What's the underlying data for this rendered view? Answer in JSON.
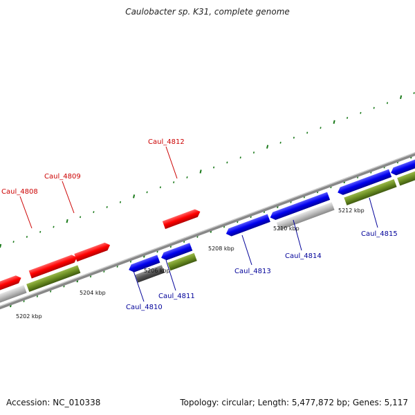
{
  "title": "Caulobacter sp. K31, complete genome",
  "footer": {
    "accession": "Accession: NC_010338",
    "topology": "Topology: circular; Length: 5,477,872 bp; Genes: 5,117"
  },
  "colors": {
    "forward_cds": "#ff0000",
    "reverse_cds": "#0000ee",
    "gene": "#6b8e23",
    "pseudo_or_other": "#bbbbbb",
    "dark_feature": "#555555",
    "backbone": "#888888",
    "tick": "#1a7a1a",
    "label_forward": "#cc0000",
    "label_reverse": "#000099"
  },
  "scale_labels": [
    "5202 kbp",
    "5204 kbp",
    "5206 kbp",
    "5208 kbp",
    "5210 kbp",
    "5212 kbp"
  ],
  "gene_labels": [
    {
      "text": "Caul_4808",
      "strand": "forward"
    },
    {
      "text": "Caul_4809",
      "strand": "forward"
    },
    {
      "text": "Caul_4812",
      "strand": "forward"
    },
    {
      "text": "Caul_4810",
      "strand": "reverse"
    },
    {
      "text": "Caul_4811",
      "strand": "reverse"
    },
    {
      "text": "Caul_4813",
      "strand": "reverse"
    },
    {
      "text": "Caul_4814",
      "strand": "reverse"
    },
    {
      "text": "Caul_4815",
      "strand": "reverse"
    }
  ]
}
